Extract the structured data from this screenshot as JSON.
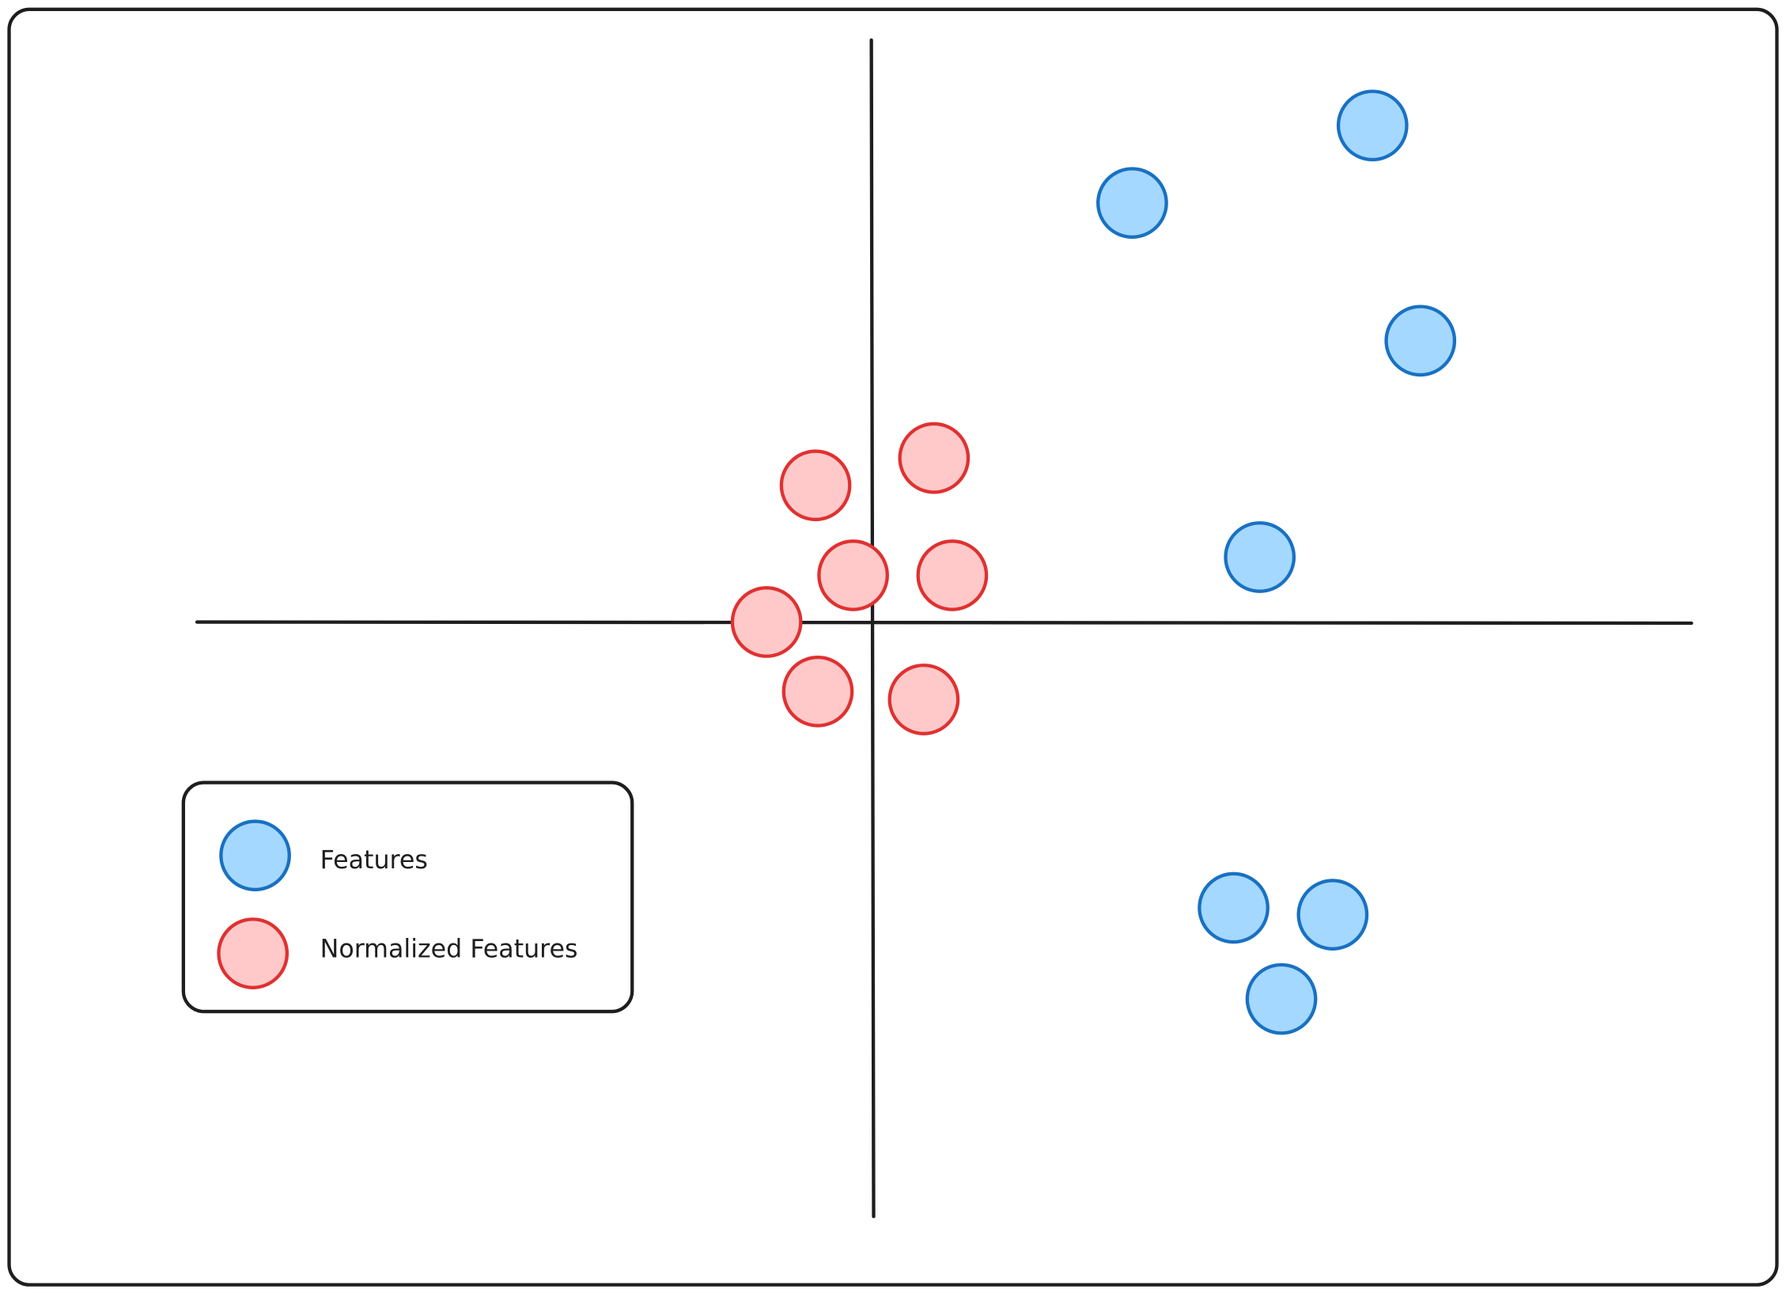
{
  "legend": {
    "items": [
      {
        "label": "Features"
      },
      {
        "label": "Normalized Features"
      }
    ]
  }
}
